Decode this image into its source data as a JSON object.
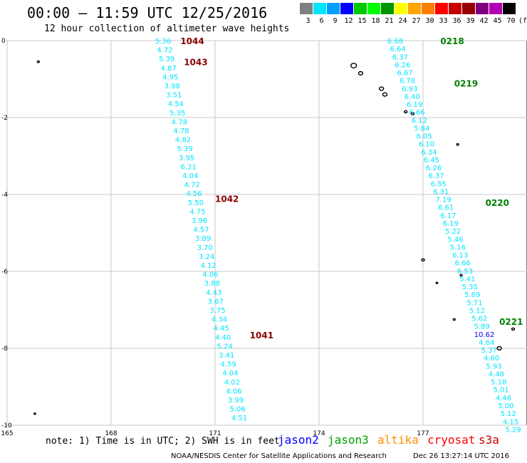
{
  "header": {
    "title": "00:00 – 11:59 UTC 12/25/2016",
    "subtitle": "12 hour collection of altimeter wave heights"
  },
  "legend": {
    "levels": [
      "3",
      "6",
      "9",
      "12",
      "15",
      "18",
      "21",
      "24",
      "27",
      "30",
      "33",
      "36",
      "39",
      "42",
      "45",
      "70"
    ],
    "unit": "(ft)",
    "colors": [
      "#808080",
      "#00e5ff",
      "#00a0ff",
      "#0000ff",
      "#00c800",
      "#00ff00",
      "#009600",
      "#ffff00",
      "#ffa500",
      "#ff7f00",
      "#ff0000",
      "#c80000",
      "#960000",
      "#800080",
      "#b400b4",
      "#000000"
    ]
  },
  "axes": {
    "lon_ticks": [
      "165",
      "168",
      "171",
      "174",
      "177"
    ],
    "lat_ticks": [
      "0",
      "-2",
      "-4",
      "-6",
      "-8",
      "-10"
    ]
  },
  "chart_data": {
    "type": "scatter",
    "xlim": [
      165,
      180
    ],
    "ylim": [
      -10,
      0
    ],
    "grid": true,
    "passes": [
      {
        "mission": "cryosat",
        "color": "#00e5ff",
        "label_color": "#8b0000",
        "start": [
          169.5,
          0
        ],
        "end": [
          171.7,
          -9.8
        ],
        "values": [
          "5.36",
          "4.72",
          "5.39",
          "4.87",
          "4.95",
          "3.98",
          "3.51",
          "4.54",
          "5.35",
          "4.78",
          "4.78",
          "4.82",
          "5.39",
          "3.95",
          "6.21",
          "4.04",
          "4.72",
          "4.56",
          "5.50",
          "4.75",
          "3.96",
          "4.57",
          "3.89",
          "3.70",
          "3.24",
          "4.12",
          "4.06",
          "3.88",
          "4.43",
          "3.67",
          "3.75",
          "4.34",
          "4.45",
          "4.40",
          "5.24",
          "3.41",
          "4.59",
          "4.04",
          "4.02",
          "4.06",
          "3.99",
          "5.06",
          "4.51"
        ],
        "time_labels": [
          {
            "text": "1044",
            "lon": 170.0,
            "lat": 0.0
          },
          {
            "text": "1043",
            "lon": 170.1,
            "lat": -0.55
          },
          {
            "text": "1042",
            "lon": 171.0,
            "lat": -4.1
          },
          {
            "text": "1041",
            "lon": 172.0,
            "lat": -7.65
          }
        ]
      },
      {
        "mission": "jason3",
        "color": "#00e5ff",
        "label_color": "#008000",
        "start": [
          176.2,
          0
        ],
        "end": [
          179.6,
          -10.1
        ],
        "values": [
          "6.68",
          "6.64",
          "6.37",
          "6.26",
          "6.67",
          "6.78",
          "6.93",
          "6.40",
          "6.19",
          "6.66",
          "6.12",
          "5.84",
          "6.05",
          "6.10",
          "6.34",
          "6.45",
          "6.26",
          "6.37",
          "6.55",
          "6.31",
          "7.19",
          "6.61",
          "6.17",
          "6.19",
          "5.22",
          "5.46",
          "5.16",
          "6.13",
          "6.66",
          "6.53",
          "5.41",
          "5.35",
          "5.69",
          "5.71",
          "5.12",
          "5.62",
          "5.89",
          "10.62",
          "4.64",
          "5.37",
          "4.60",
          "5.93",
          "4.48",
          "5.18",
          "5.01",
          "4.46",
          "5.00",
          "5.12",
          "4.15",
          "5.29"
        ],
        "time_labels": [
          {
            "text": "0218",
            "lon": 177.5,
            "lat": 0.0
          },
          {
            "text": "0219",
            "lon": 177.9,
            "lat": -1.1
          },
          {
            "text": "0220",
            "lon": 178.8,
            "lat": -4.2
          },
          {
            "text": "0221",
            "lon": 179.2,
            "lat": -7.3
          }
        ]
      }
    ]
  },
  "missions": [
    {
      "name": "jason2",
      "color": "#0000ff"
    },
    {
      "name": "jason3",
      "color": "#00a000"
    },
    {
      "name": "altika",
      "color": "#ff8c00"
    },
    {
      "name": "cryosat",
      "color": "#ff0000"
    },
    {
      "name": "s3a",
      "color": "#c80000"
    }
  ],
  "footer": {
    "note": "note: 1) Time is in UTC; 2) SWH is in feet",
    "credit": "NOAA/NESDIS Center for Satellite Applications and Research",
    "timestamp": "Dec 26 13:27:14 UTC 2016"
  }
}
